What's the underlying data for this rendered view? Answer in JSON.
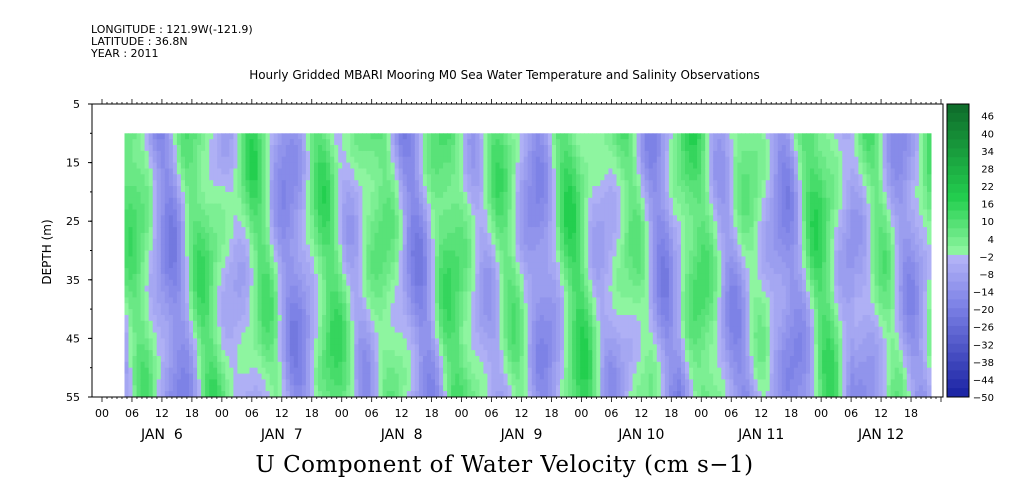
{
  "header": {
    "longitude": "LONGITUDE : 121.9W(-121.9)",
    "latitude": "LATITUDE : 36.8N",
    "year": "YEAR : 2011"
  },
  "chart_data": {
    "type": "heatmap",
    "title": "Hourly Gridded MBARI Mooring M0 Sea Water Temperature and Salinity Observations",
    "variable_title": "U Component of Water Velocity (cm s−1)",
    "ylabel": "DEPTH (m)",
    "yticks": [
      "5",
      "15",
      "25",
      "35",
      "45",
      "55"
    ],
    "ylim": [
      5,
      55
    ],
    "y_inverted": true,
    "data_depth_range": [
      10,
      55
    ],
    "x_hour_ticks": [
      "00",
      "06",
      "12",
      "18",
      "00",
      "06",
      "12",
      "18",
      "00",
      "06",
      "12",
      "18",
      "00",
      "06",
      "12",
      "18",
      "00",
      "06",
      "12",
      "18",
      "00",
      "06",
      "12",
      "18",
      "00",
      "06",
      "12",
      "18"
    ],
    "x_day_labels": [
      "JAN  6",
      "JAN  7",
      "JAN  8",
      "JAN  9",
      "JAN 10",
      "JAN 11",
      "JAN 12"
    ],
    "x_range_hours": [
      0,
      168
    ],
    "data_time_range_hours": [
      4.5,
      166
    ],
    "colorbar": {
      "labels": [
        "46",
        "40",
        "34",
        "28",
        "22",
        "16",
        "10",
        "4",
        "−2",
        "−8",
        "−14",
        "−20",
        "−26",
        "−32",
        "−38",
        "−44",
        "−50"
      ],
      "range": [
        -50,
        50
      ],
      "step": 3
    },
    "colors": {
      "positive_strong": "#0e6a2a",
      "positive_mid": "#23cf4f",
      "positive_light": "#8ef5a0",
      "negative_light": "#b9b9f8",
      "negative_mid": "#7d82e6",
      "negative_strong": "#151ea0"
    }
  }
}
